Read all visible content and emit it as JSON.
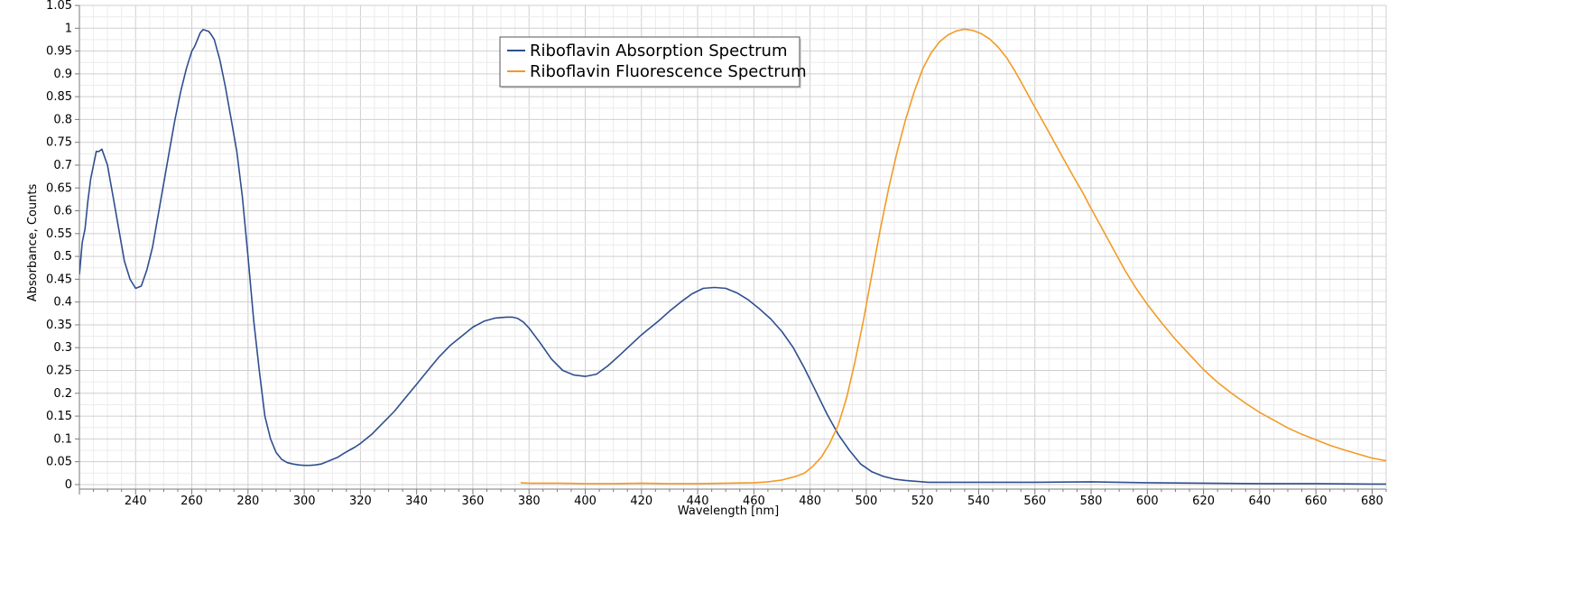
{
  "chart_data": {
    "type": "line",
    "title": "",
    "xlabel": "Wavelength [nm]",
    "ylabel": "Absorbance, Counts",
    "xlim": [
      220,
      685
    ],
    "ylim": [
      -0.01,
      1.05
    ],
    "xticks": [
      240,
      260,
      280,
      300,
      320,
      340,
      360,
      380,
      400,
      420,
      440,
      460,
      480,
      500,
      520,
      540,
      560,
      580,
      600,
      620,
      640,
      660,
      680
    ],
    "yticks": [
      0,
      0.05,
      0.1,
      0.15,
      0.2,
      0.25,
      0.3,
      0.35,
      0.4,
      0.45,
      0.5,
      0.55,
      0.6,
      0.65,
      0.7,
      0.75,
      0.8,
      0.85,
      0.9,
      0.95,
      1,
      1.05
    ],
    "ytick_labels": [
      "0",
      "0.05",
      "0.1",
      "0.15",
      "0.2",
      "0.25",
      "0.3",
      "0.35",
      "0.4",
      "0.45",
      "0.5",
      "0.55",
      "0.6",
      "0.65",
      "0.7",
      "0.75",
      "0.8",
      "0.85",
      "0.9",
      "0.95",
      "1",
      "1.05"
    ],
    "grid": true,
    "legend_position": "top-center",
    "series": [
      {
        "name": "Riboflavin Absorption Spectrum",
        "color": "#2f4f8f",
        "x": [
          220,
          221,
          222,
          223,
          224,
          225,
          226,
          227,
          228,
          230,
          232,
          234,
          236,
          238,
          240,
          242,
          244,
          246,
          248,
          250,
          252,
          254,
          256,
          258,
          259,
          260,
          261,
          262,
          263,
          264,
          265,
          266,
          267,
          268,
          270,
          272,
          274,
          276,
          278,
          280,
          282,
          284,
          286,
          288,
          290,
          292,
          294,
          296,
          298,
          300,
          302,
          304,
          306,
          308,
          310,
          312,
          314,
          316,
          318,
          320,
          324,
          328,
          332,
          336,
          340,
          344,
          348,
          352,
          356,
          360,
          364,
          368,
          372,
          374,
          376,
          378,
          380,
          384,
          388,
          392,
          396,
          400,
          404,
          408,
          412,
          416,
          420,
          422,
          426,
          430,
          434,
          438,
          442,
          446,
          450,
          454,
          458,
          462,
          466,
          470,
          474,
          478,
          482,
          486,
          490,
          494,
          498,
          502,
          506,
          510,
          514,
          518,
          522,
          530,
          540,
          560,
          580,
          600,
          620,
          640,
          660,
          680,
          685
        ],
        "y": [
          0.46,
          0.53,
          0.56,
          0.62,
          0.67,
          0.7,
          0.73,
          0.73,
          0.735,
          0.7,
          0.63,
          0.56,
          0.49,
          0.45,
          0.43,
          0.435,
          0.47,
          0.52,
          0.59,
          0.66,
          0.73,
          0.8,
          0.86,
          0.91,
          0.93,
          0.95,
          0.96,
          0.975,
          0.99,
          0.997,
          0.995,
          0.993,
          0.985,
          0.975,
          0.93,
          0.87,
          0.8,
          0.73,
          0.63,
          0.5,
          0.36,
          0.25,
          0.15,
          0.1,
          0.07,
          0.055,
          0.048,
          0.045,
          0.043,
          0.042,
          0.042,
          0.043,
          0.045,
          0.05,
          0.055,
          0.06,
          0.068,
          0.075,
          0.082,
          0.09,
          0.11,
          0.135,
          0.16,
          0.19,
          0.22,
          0.25,
          0.28,
          0.305,
          0.325,
          0.345,
          0.358,
          0.365,
          0.367,
          0.367,
          0.364,
          0.356,
          0.343,
          0.31,
          0.275,
          0.25,
          0.24,
          0.237,
          0.242,
          0.26,
          0.282,
          0.305,
          0.328,
          0.338,
          0.358,
          0.38,
          0.4,
          0.418,
          0.43,
          0.432,
          0.43,
          0.42,
          0.405,
          0.385,
          0.363,
          0.335,
          0.3,
          0.255,
          0.205,
          0.155,
          0.11,
          0.075,
          0.045,
          0.028,
          0.018,
          0.012,
          0.009,
          0.007,
          0.005,
          0.005,
          0.005,
          0.005,
          0.006,
          0.004,
          0.003,
          0.002,
          0.002,
          0.001,
          0.001
        ]
      },
      {
        "name": "Riboflavin Fluorescence Spectrum",
        "color": "#f39b26",
        "x": [
          377,
          380,
          390,
          400,
          410,
          420,
          430,
          440,
          450,
          460,
          465,
          470,
          475,
          478,
          481,
          484,
          487,
          490,
          493,
          496,
          499,
          502,
          505,
          508,
          511,
          514,
          517,
          520,
          523,
          526,
          529,
          532,
          535,
          538,
          541,
          544,
          547,
          550,
          553,
          556,
          559,
          562,
          565,
          568,
          571,
          574,
          577,
          580,
          584,
          588,
          592,
          596,
          600,
          605,
          610,
          615,
          620,
          625,
          630,
          635,
          640,
          645,
          650,
          655,
          660,
          665,
          670,
          675,
          680,
          685
        ],
        "y": [
          0.004,
          0.003,
          0.003,
          0.002,
          0.002,
          0.003,
          0.002,
          0.002,
          0.003,
          0.004,
          0.006,
          0.01,
          0.018,
          0.025,
          0.04,
          0.06,
          0.09,
          0.13,
          0.19,
          0.27,
          0.36,
          0.46,
          0.56,
          0.65,
          0.73,
          0.8,
          0.86,
          0.91,
          0.945,
          0.97,
          0.985,
          0.994,
          0.998,
          0.995,
          0.988,
          0.976,
          0.958,
          0.935,
          0.905,
          0.872,
          0.838,
          0.805,
          0.772,
          0.738,
          0.705,
          0.672,
          0.64,
          0.605,
          0.56,
          0.515,
          0.47,
          0.43,
          0.395,
          0.355,
          0.318,
          0.285,
          0.252,
          0.224,
          0.2,
          0.178,
          0.158,
          0.141,
          0.124,
          0.11,
          0.098,
          0.086,
          0.076,
          0.067,
          0.058,
          0.052
        ]
      }
    ]
  }
}
